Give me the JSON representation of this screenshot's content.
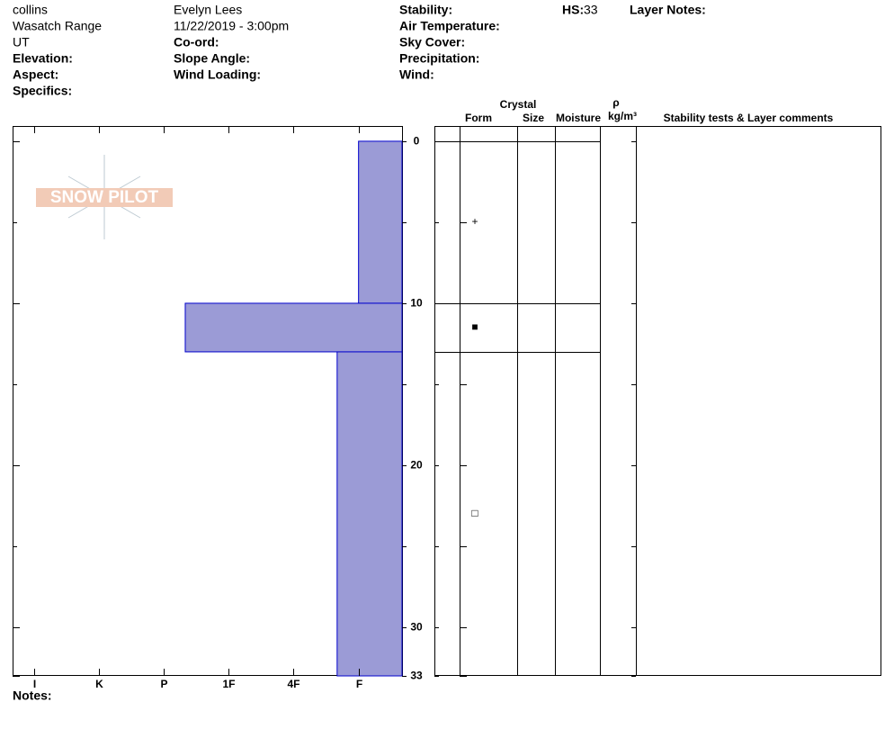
{
  "header": {
    "observer": "collins",
    "range": "Wasatch Range",
    "state": "UT",
    "elevation": "Elevation:",
    "aspect": "Aspect:",
    "specifics": "Specifics:",
    "name": "Evelyn Lees",
    "datetime": "11/22/2019 - 3:00pm",
    "coord": "Co-ord:",
    "slope_angle": "Slope Angle:",
    "wind_loading": "Wind Loading:",
    "stability": "Stability:",
    "air_temperature": "Air Temperature:",
    "sky_cover": "Sky Cover:",
    "precipitation": "Precipitation:",
    "wind": "Wind:",
    "hs_label": "HS:",
    "hs": 33,
    "layer_notes": "Layer Notes:"
  },
  "logo": "SNOW PILOT",
  "notes": "Notes:",
  "table_headers": {
    "crystal": "Crystal",
    "form": "Form",
    "size": "Size",
    "moisture": "Moisture",
    "rho": "ρ",
    "density_unit": "kg/m³",
    "comments": "Stability tests & Layer comments"
  },
  "chart_data": {
    "type": "hardness_profile",
    "xlim": [
      6.33,
      0.33
    ],
    "xticks": [
      {
        "value": 6,
        "label": "I"
      },
      {
        "value": 5,
        "label": "K"
      },
      {
        "value": 4,
        "label": "P"
      },
      {
        "value": 3,
        "label": "1F"
      },
      {
        "value": 2,
        "label": "4F"
      },
      {
        "value": 1,
        "label": "F"
      }
    ],
    "ylim": [
      -0.94,
      33
    ],
    "yticks": [
      0,
      10,
      20,
      30,
      33
    ],
    "yminor": [
      5,
      15,
      25
    ],
    "color": "#9b9bd6",
    "layers": {
      "top": [
        0,
        10,
        13
      ],
      "bottom": [
        10,
        13,
        33
      ],
      "hardness": [
        1,
        3.67,
        1.33
      ],
      "grain_form": [
        "+",
        "■",
        "□"
      ]
    }
  }
}
